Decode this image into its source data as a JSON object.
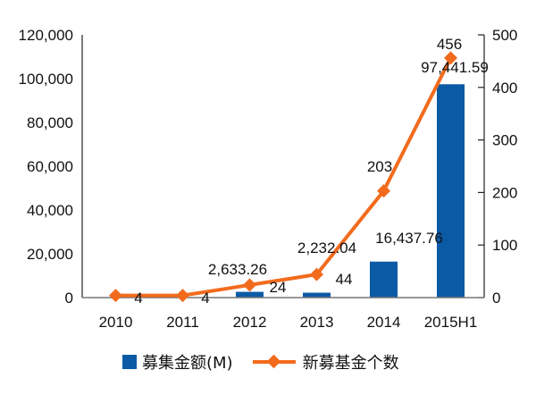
{
  "chart_data": {
    "type": "bar+line",
    "title": "",
    "categories": [
      "2010",
      "2011",
      "2012",
      "2013",
      "2014",
      "2015H1"
    ],
    "series": [
      {
        "name": "募集金额(M)",
        "type": "bar",
        "axis": "left",
        "color": "#0b5aa6",
        "values": [
          0,
          0,
          2633.26,
          2232.04,
          16437.76,
          97441.59
        ],
        "labels": [
          "",
          "",
          "2,633.26",
          "2,232.04",
          "16,437.76",
          "97,441.59"
        ]
      },
      {
        "name": "新募基金个数",
        "type": "line",
        "axis": "right",
        "color": "#f26b1d",
        "marker": "diamond",
        "values": [
          4,
          4,
          24,
          44,
          203,
          456
        ],
        "labels": [
          "4",
          "4",
          "24",
          "44",
          "203",
          "456"
        ]
      }
    ],
    "y_left": {
      "label": "",
      "range": [
        0,
        120000
      ],
      "ticks": [
        "0",
        "20,000",
        "40,000",
        "60,000",
        "80,000",
        "100,000",
        "120,000"
      ]
    },
    "y_right": {
      "label": "",
      "range": [
        0,
        500
      ],
      "ticks": [
        "0",
        "100",
        "200",
        "300",
        "400",
        "500"
      ]
    },
    "grid": false,
    "legend_position": "bottom"
  },
  "legend": {
    "bar_label": "募集金额(M)",
    "line_label": "新募基金个数"
  }
}
